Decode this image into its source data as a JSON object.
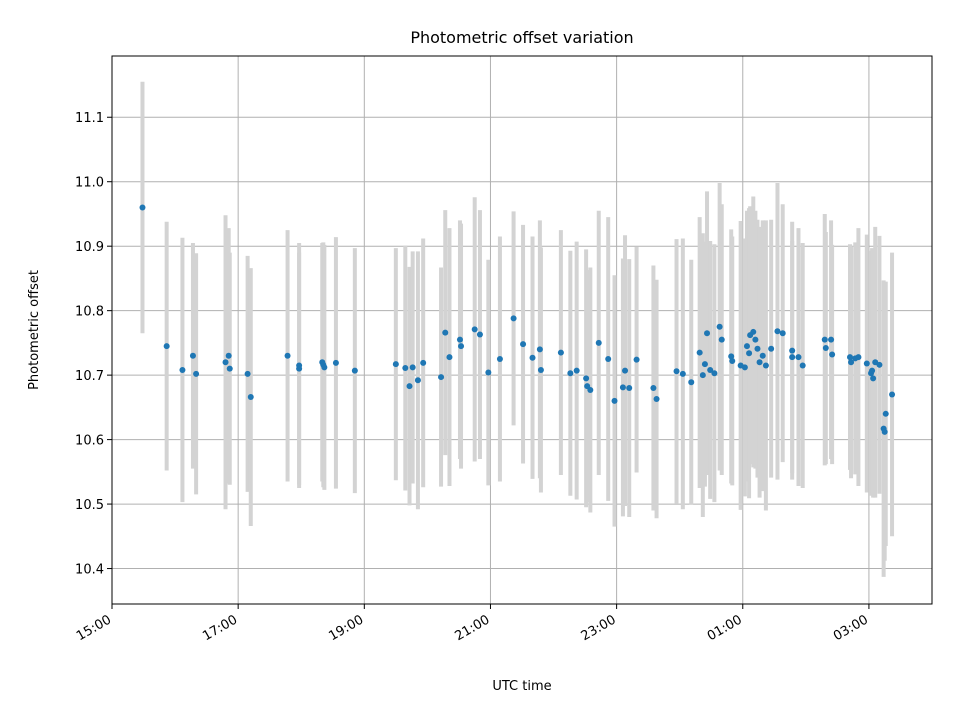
{
  "chart_data": {
    "type": "scatter",
    "title": "Photometric offset variation",
    "xlabel": "UTC time",
    "ylabel": "Photometric offset",
    "x_unit": "UTC time",
    "xlim": [
      "15:00",
      "04:00"
    ],
    "ylim": [
      10.345,
      11.195
    ],
    "x_ticks": [
      "15:00",
      "17:00",
      "19:00",
      "21:00",
      "23:00",
      "01:00",
      "03:00"
    ],
    "y_ticks": [
      10.4,
      10.5,
      10.6,
      10.7,
      10.8,
      10.9,
      11.0,
      11.1
    ],
    "y_tick_labels": [
      "10.4",
      "10.5",
      "10.6",
      "10.7",
      "10.8",
      "10.9",
      "11.0",
      "11.1"
    ],
    "grid": true,
    "colors": {
      "points": "#1f77b4",
      "errorbars": "#d3d3d3",
      "grid": "#b0b0b0"
    },
    "series": [
      {
        "points": [
          [
            "15:29",
            10.96,
            0.195
          ],
          [
            "15:52",
            10.745,
            0.193
          ],
          [
            "16:07",
            10.708,
            0.205
          ],
          [
            "16:17",
            10.73,
            0.175
          ],
          [
            "16:20",
            10.702,
            0.187
          ],
          [
            "16:48",
            10.72,
            0.228
          ],
          [
            "16:51",
            10.73,
            0.198
          ],
          [
            "16:52",
            10.71,
            0.18
          ],
          [
            "17:09",
            10.702,
            0.183
          ],
          [
            "17:12",
            10.666,
            0.2
          ],
          [
            "17:47",
            10.73,
            0.195
          ],
          [
            "17:58",
            10.715,
            0.19
          ],
          [
            "17:58",
            10.71,
            0.18
          ],
          [
            "18:20",
            10.72,
            0.185
          ],
          [
            "18:21",
            10.716,
            0.19
          ],
          [
            "18:22",
            10.712,
            0.19
          ],
          [
            "18:33",
            10.719,
            0.195
          ],
          [
            "18:51",
            10.707,
            0.19
          ],
          [
            "19:30",
            10.717,
            0.18
          ],
          [
            "19:39",
            10.711,
            0.19
          ],
          [
            "19:43",
            10.683,
            0.185
          ],
          [
            "19:46",
            10.712,
            0.18
          ],
          [
            "19:51",
            10.692,
            0.2
          ],
          [
            "19:56",
            10.719,
            0.193
          ],
          [
            "20:13",
            10.697,
            0.17
          ],
          [
            "20:17",
            10.766,
            0.19
          ],
          [
            "20:21",
            10.728,
            0.2
          ],
          [
            "20:31",
            10.755,
            0.185
          ],
          [
            "20:32",
            10.745,
            0.19
          ],
          [
            "20:45",
            10.771,
            0.205
          ],
          [
            "20:50",
            10.763,
            0.193
          ],
          [
            "20:58",
            10.704,
            0.175
          ],
          [
            "21:09",
            10.725,
            0.19
          ],
          [
            "21:22",
            10.788,
            0.166
          ],
          [
            "21:31",
            10.748,
            0.185
          ],
          [
            "21:40",
            10.727,
            0.188
          ],
          [
            "21:47",
            10.74,
            0.2
          ],
          [
            "21:48",
            10.708,
            0.19
          ],
          [
            "22:07",
            10.735,
            0.19
          ],
          [
            "22:16",
            10.703,
            0.19
          ],
          [
            "22:22",
            10.707,
            0.2
          ],
          [
            "22:31",
            10.695,
            0.2
          ],
          [
            "22:32",
            10.683,
            0.18
          ],
          [
            "22:35",
            10.677,
            0.19
          ],
          [
            "22:43",
            10.75,
            0.205
          ],
          [
            "22:52",
            10.725,
            0.22
          ],
          [
            "22:58",
            10.66,
            0.195
          ],
          [
            "23:06",
            10.681,
            0.2
          ],
          [
            "23:08",
            10.707,
            0.21
          ],
          [
            "23:12",
            10.68,
            0.2
          ],
          [
            "23:19",
            10.724,
            0.175
          ],
          [
            "23:35",
            10.68,
            0.19
          ],
          [
            "23:38",
            10.663,
            0.185
          ],
          [
            "23:57",
            10.706,
            0.205
          ],
          [
            "24:03",
            10.702,
            0.21
          ],
          [
            "24:11",
            10.689,
            0.19
          ],
          [
            "24:19",
            10.735,
            0.21
          ],
          [
            "24:22",
            10.7,
            0.22
          ],
          [
            "24:24",
            10.717,
            0.19
          ],
          [
            "24:26",
            10.765,
            0.22
          ],
          [
            "24:29",
            10.708,
            0.2
          ],
          [
            "24:33",
            10.703,
            0.2
          ],
          [
            "24:38",
            10.775,
            0.223
          ],
          [
            "24:40",
            10.755,
            0.21
          ],
          [
            "24:49",
            10.729,
            0.197
          ],
          [
            "24:50",
            10.722,
            0.193
          ],
          [
            "24:58",
            10.715,
            0.224
          ],
          [
            "25:02",
            10.712,
            0.2
          ],
          [
            "25:04",
            10.745,
            0.21
          ],
          [
            "25:06",
            10.734,
            0.225
          ],
          [
            "25:07",
            10.762,
            0.2
          ],
          [
            "25:10",
            10.767,
            0.21
          ],
          [
            "25:12",
            10.755,
            0.2
          ],
          [
            "25:14",
            10.741,
            0.2
          ],
          [
            "25:16",
            10.72,
            0.21
          ],
          [
            "25:19",
            10.73,
            0.21
          ],
          [
            "25:22",
            10.715,
            0.225
          ],
          [
            "25:27",
            10.741,
            0.2
          ],
          [
            "25:33",
            10.768,
            0.23
          ],
          [
            "25:38",
            10.765,
            0.2
          ],
          [
            "25:47",
            10.738,
            0.2
          ],
          [
            "25:47",
            10.728,
            0.18
          ],
          [
            "25:53",
            10.728,
            0.2
          ],
          [
            "25:57",
            10.715,
            0.19
          ],
          [
            "26:18",
            10.755,
            0.195
          ],
          [
            "26:19",
            10.742,
            0.18
          ],
          [
            "26:24",
            10.755,
            0.185
          ],
          [
            "26:25",
            10.732,
            0.17
          ],
          [
            "26:42",
            10.728,
            0.175
          ],
          [
            "26:43",
            10.72,
            0.18
          ],
          [
            "26:47",
            10.726,
            0.18
          ],
          [
            "26:50",
            10.728,
            0.2
          ],
          [
            "26:58",
            10.718,
            0.2
          ],
          [
            "27:02",
            10.703,
            0.19
          ],
          [
            "27:03",
            10.707,
            0.19
          ],
          [
            "27:04",
            10.695,
            0.185
          ],
          [
            "27:06",
            10.72,
            0.21
          ],
          [
            "27:10",
            10.716,
            0.2
          ],
          [
            "27:14",
            10.617,
            0.23
          ],
          [
            "27:15",
            10.612,
            0.2
          ],
          [
            "27:16",
            10.64,
            0.205
          ],
          [
            "27:22",
            10.67,
            0.22
          ]
        ]
      }
    ]
  }
}
